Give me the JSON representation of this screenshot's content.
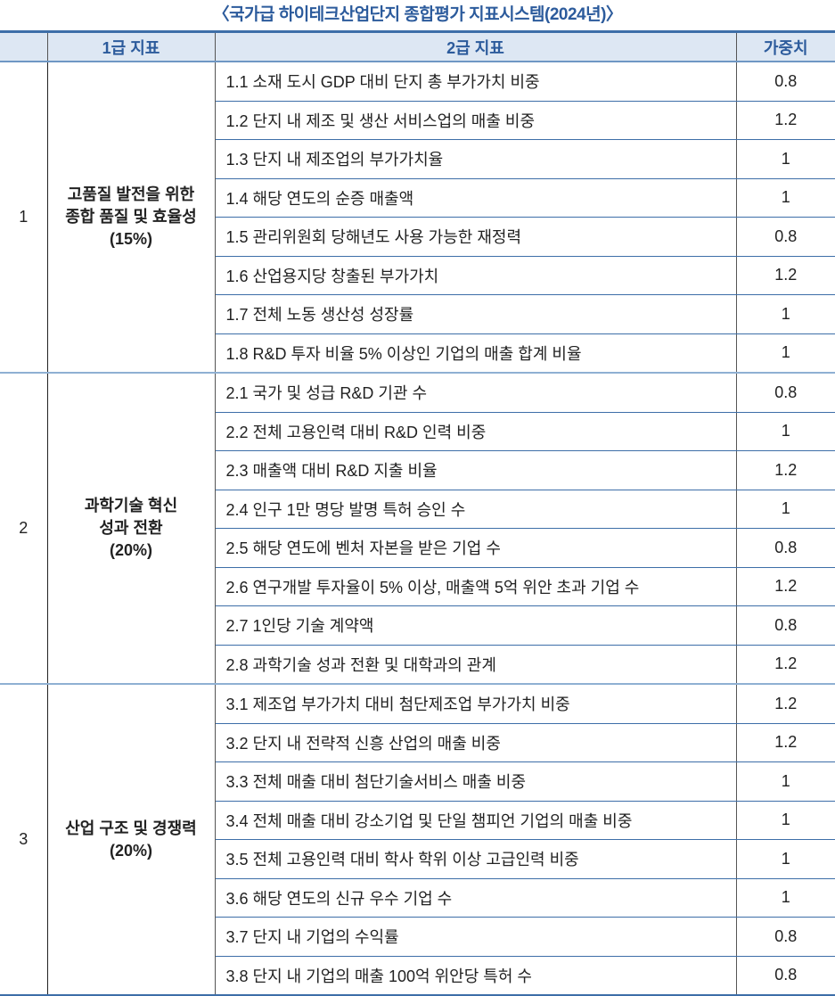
{
  "title": "〈국가급 하이테크산업단지 종합평가 지표시스템(2024년)〉",
  "headers": [
    "",
    "1급 지표",
    "2급 지표",
    "가중치"
  ],
  "groups": [
    {
      "no": "1",
      "name": [
        "고품질 발전을 위한",
        "종합 품질 및 효율성",
        "(15%)"
      ],
      "items": [
        {
          "label": "1.1 소재 도시 GDP 대비 단지 총 부가가치 비중",
          "weight": "0.8"
        },
        {
          "label": "1.2 단지 내 제조 및 생산 서비스업의 매출 비중",
          "weight": "1.2"
        },
        {
          "label": "1.3 단지 내 제조업의 부가가치율",
          "weight": "1"
        },
        {
          "label": "1.4 해당 연도의 순증 매출액",
          "weight": "1"
        },
        {
          "label": "1.5 관리위원회 당해년도 사용 가능한 재정력",
          "weight": "0.8"
        },
        {
          "label": "1.6 산업용지당 창출된 부가가치",
          "weight": "1.2"
        },
        {
          "label": "1.7 전체 노동 생산성 성장률",
          "weight": "1"
        },
        {
          "label": "1.8 R&D 투자 비율 5% 이상인 기업의 매출 합계 비율",
          "weight": "1"
        }
      ]
    },
    {
      "no": "2",
      "name": [
        "과학기술 혁신",
        "성과 전환",
        "(20%)"
      ],
      "items": [
        {
          "label": "2.1 국가 및 성급 R&D 기관 수",
          "weight": "0.8"
        },
        {
          "label": "2.2 전체 고용인력 대비 R&D 인력 비중",
          "weight": "1"
        },
        {
          "label": "2.3 매출액 대비 R&D 지출 비율",
          "weight": "1.2"
        },
        {
          "label": "2.4 인구 1만 명당 발명 특허 승인 수",
          "weight": "1"
        },
        {
          "label": "2.5 해당 연도에 벤처 자본을 받은 기업 수",
          "weight": "0.8"
        },
        {
          "label": "2.6 연구개발 투자율이 5% 이상, 매출액 5억 위안 초과 기업 수",
          "weight": "1.2"
        },
        {
          "label": "2.7 1인당 기술 계약액",
          "weight": "0.8"
        },
        {
          "label": "2.8 과학기술 성과 전환 및 대학과의 관계",
          "weight": "1.2"
        }
      ]
    },
    {
      "no": "3",
      "name": [
        "산업 구조 및 경쟁력",
        "(20%)"
      ],
      "items": [
        {
          "label": "3.1 제조업 부가가치 대비 첨단제조업 부가가치 비중",
          "weight": "1.2"
        },
        {
          "label": "3.2 단지 내 전략적 신흥 산업의 매출 비중",
          "weight": "1.2"
        },
        {
          "label": "3.3 전체 매출 대비 첨단기술서비스 매출 비중",
          "weight": "1"
        },
        {
          "label": "3.4 전체 매출 대비 강소기업 및 단일 챔피언 기업의 매출 비중",
          "weight": "1"
        },
        {
          "label": "3.5 전체 고용인력 대비 학사 학위 이상 고급인력 비중",
          "weight": "1"
        },
        {
          "label": "3.6 해당 연도의 신규 우수 기업 수",
          "weight": "1"
        },
        {
          "label": "3.7 단지 내 기업의 수익률",
          "weight": "0.8"
        },
        {
          "label": "3.8 단지 내 기업의 매출 100억 위안당 특허 수",
          "weight": "0.8"
        }
      ]
    }
  ]
}
